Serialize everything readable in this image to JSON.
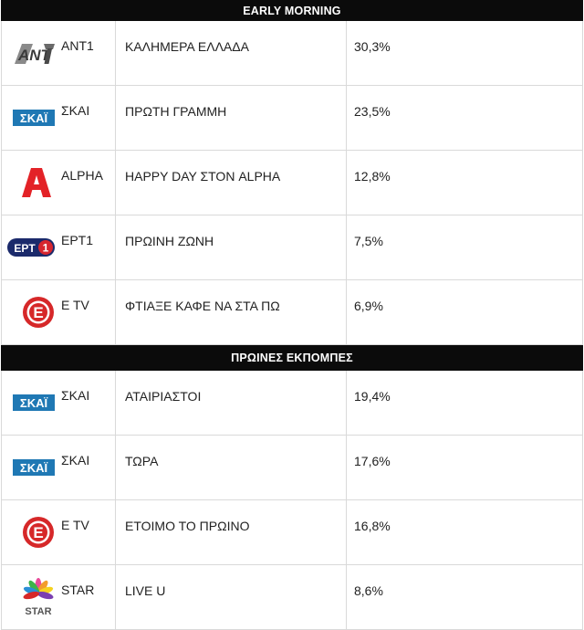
{
  "sections": [
    {
      "title": "EARLY MORNING",
      "rows": [
        {
          "logo": "ant1-logo",
          "channel": "ANT1",
          "show": "ΚΑΛΗΜΕΡΑ ΕΛΛΑΔΑ",
          "share": "30,3%"
        },
        {
          "logo": "skai-logo",
          "channel": "ΣΚΑΙ",
          "show": "ΠΡΩΤΗ ΓΡΑΜΜΗ",
          "share": "23,5%"
        },
        {
          "logo": "alpha-logo",
          "channel": "ALPHA",
          "show": "HAPPY DAY ΣΤΟΝ ALPHA",
          "share": "12,8%"
        },
        {
          "logo": "ert1-logo",
          "channel": "ΕΡΤ1",
          "show": "ΠΡΩΙΝΗ ΖΩΝΗ",
          "share": "7,5%"
        },
        {
          "logo": "etv-logo",
          "channel": "E TV",
          "show": "ΦΤΙΑΞΕ ΚΑΦΕ ΝΑ ΣΤΑ ΠΩ",
          "share": "6,9%"
        }
      ]
    },
    {
      "title": "ΠΡΩΙΝΕΣ ΕΚΠΟΜΠΕΣ",
      "rows": [
        {
          "logo": "skai-logo",
          "channel": "ΣΚΑΙ",
          "show": "ΑΤΑΙΡΙΑΣΤΟΙ",
          "share": "19,4%"
        },
        {
          "logo": "skai-logo",
          "channel": "ΣΚΑΙ",
          "show": "ΤΩΡΑ",
          "share": "17,6%"
        },
        {
          "logo": "etv-logo",
          "channel": "E TV",
          "show": "ΕΤΟΙΜΟ ΤΟ ΠΡΩΙΝΟ",
          "share": "16,8%"
        },
        {
          "logo": "star-logo",
          "channel": "STAR",
          "show": "LIVE U",
          "share": "8,6%"
        }
      ]
    }
  ],
  "logos": {
    "ant1_text": "ANT",
    "skai_text": "ΣΚΑΪ",
    "ert_text": "ΕΡΤ",
    "ert_num": "1",
    "etv_text": "E",
    "star_text": "STAR"
  },
  "colors": {
    "header_bg": "#0b0b0b",
    "skai_blue": "#1f78b4",
    "alpha_red": "#e32227",
    "ert_navy": "#1b2a6b",
    "ert_red": "#d7262f",
    "etv_red": "#d62829"
  }
}
